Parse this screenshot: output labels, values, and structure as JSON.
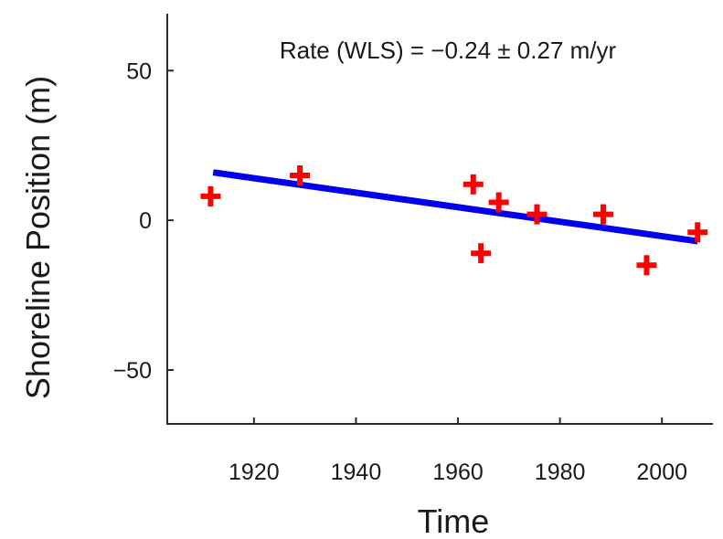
{
  "chart_data": {
    "type": "scatter",
    "title": "",
    "annotation": "Rate (WLS) = −0.24  ± 0.27 m/yr",
    "xlabel": "Time",
    "ylabel": "Shoreline Position (m)",
    "xlim": [
      1903,
      2010
    ],
    "ylim": [
      -68,
      69
    ],
    "xticks": [
      1920,
      1940,
      1960,
      1980,
      2000
    ],
    "yticks": [
      50,
      0,
      -50
    ],
    "ytick_labels": [
      "50",
      "0",
      "−50"
    ],
    "grid": false,
    "points": [
      {
        "x": 1911.5,
        "y": 8
      },
      {
        "x": 1929,
        "y": 15
      },
      {
        "x": 1963,
        "y": 12
      },
      {
        "x": 1964.5,
        "y": -11
      },
      {
        "x": 1968,
        "y": 6
      },
      {
        "x": 1975.5,
        "y": 2
      },
      {
        "x": 1988.5,
        "y": 2
      },
      {
        "x": 1997,
        "y": -15
      },
      {
        "x": 2007,
        "y": -4
      }
    ],
    "trend_line": {
      "x": [
        1912,
        2007
      ],
      "y": [
        16,
        -7
      ]
    },
    "colors": {
      "points": "#ff0000",
      "trend_line": "#0000ee",
      "axes": "#2a2a2a"
    }
  }
}
